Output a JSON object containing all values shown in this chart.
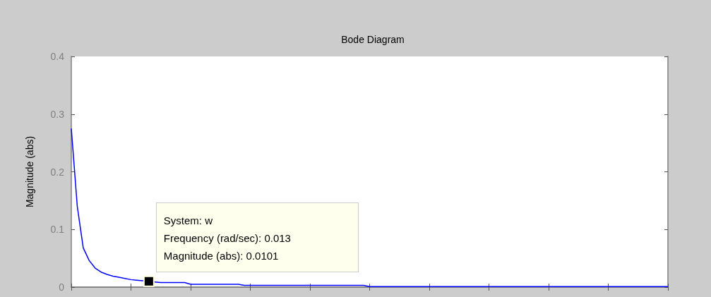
{
  "chart_data": {
    "type": "line",
    "title": "Bode Diagram",
    "ylabel": "Magnitude (abs)",
    "categories": [
      null,
      null,
      null,
      null,
      null,
      null,
      null,
      null,
      null,
      null,
      null,
      null,
      null,
      null,
      null,
      null,
      null,
      null,
      null,
      null,
      null,
      null,
      null,
      null,
      null,
      null,
      null,
      null,
      null,
      null,
      null,
      null,
      null,
      null,
      null,
      null,
      null,
      null,
      null,
      null,
      null,
      null,
      null,
      null,
      null,
      null,
      null,
      null,
      null,
      null,
      null,
      null,
      null,
      null,
      null,
      null,
      null,
      null,
      null,
      null,
      null,
      null,
      null,
      null,
      null,
      null,
      null,
      null,
      null,
      null,
      null,
      null,
      null,
      null,
      null,
      null,
      null,
      null,
      null,
      null,
      null,
      null,
      null,
      null,
      null,
      null,
      null,
      null,
      null,
      null,
      null,
      null,
      null,
      null,
      null,
      null,
      null,
      null,
      null,
      null,
      null
    ],
    "series": [
      {
        "color": "#0000ff",
        "values": [
          0.275,
          0.14,
          0.068,
          0.046,
          0.033,
          0.026,
          0.022,
          0.019,
          0.017,
          0.015,
          0.013,
          0.012,
          0.011,
          0.01,
          0.009,
          0.008,
          0.008,
          0.008,
          0.008,
          0.008,
          0.005,
          0.005,
          0.005,
          0.005,
          0.005,
          0.005,
          0.005,
          0.005,
          0.005,
          0.003,
          0.003,
          0.003,
          0.003,
          0.003,
          0.003,
          0.003,
          0.003,
          0.003,
          0.003,
          0.003,
          0.003,
          0.003,
          0.003,
          0.003,
          0.003,
          0.003,
          0.003,
          0.003,
          0.003,
          0.003,
          0.001,
          0.001,
          0.001,
          0.001,
          0.001,
          0.001,
          0.001,
          0.001,
          0.001,
          0.001,
          0.001,
          0.001,
          0.001,
          0.001,
          0.001,
          0.001,
          0.001,
          0.001,
          0.001,
          0.001,
          0.001,
          0.001,
          0.001,
          0.001,
          0.001,
          0.001,
          0.001,
          0.001,
          0.001,
          0.001,
          0.001,
          0.001,
          0.001,
          0.001,
          0.001,
          0.001,
          0.001,
          0.001,
          0.001,
          0.001,
          0.001,
          0.001,
          0.001,
          0.001,
          0.001,
          0.001,
          0.001,
          0.001,
          0.001,
          0.001,
          0.001
        ]
      }
    ],
    "ylim": [
      0,
      0.4
    ],
    "yticks": [
      0,
      0.1,
      0.2,
      0.3,
      0.4
    ],
    "tick_labels": "y",
    "annotations": [
      {
        "text": "System: w\nFrequency (rad/sec): 0.013\nMagnitude (abs): 0.0101",
        "y": 0.0101
      }
    ]
  }
}
